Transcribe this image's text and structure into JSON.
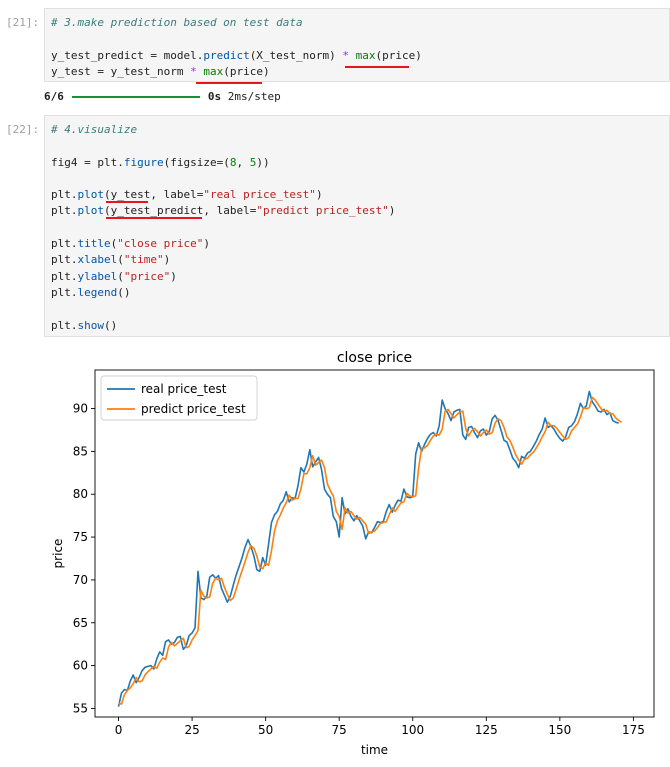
{
  "cells": [
    {
      "prompt": "[21]:",
      "code": {
        "comment": "# 3.make prediction based on test data",
        "line1": {
          "a": "y_test_predict = model.",
          "fn": "predict",
          "b": "(X_test_norm) ",
          "op": "*",
          "c": " ",
          "bi": "max",
          "d": "(price)"
        },
        "line2": {
          "a": "y_test = y_test_norm ",
          "op": "*",
          "b": " ",
          "bi": "max",
          "c": "(price)"
        }
      },
      "output": {
        "progress_label": "6/6",
        "time": "0s",
        "rate": "2ms/step",
        "progress": 1.0
      }
    },
    {
      "prompt": "[22]:",
      "code": {
        "comment": "# 4.visualize",
        "fig_line": {
          "a": "fig4 = plt.",
          "fn": "figure",
          "b": "(figsize=(",
          "n1": "8",
          "c": ", ",
          "n2": "5",
          "d": "))"
        },
        "plot1": {
          "a": "plt.",
          "fn": "plot",
          "b": "(y_test, label=",
          "s": "\"real price_test\"",
          "c": ")"
        },
        "plot2": {
          "a": "plt.",
          "fn": "plot",
          "b": "(y_test_predict, label=",
          "s": "\"predict price_test\"",
          "c": ")"
        },
        "title_line": {
          "a": "plt.",
          "fn": "title",
          "b": "(",
          "s": "\"close price\"",
          "c": ")"
        },
        "xlabel_line": {
          "a": "plt.",
          "fn": "xlabel",
          "b": "(",
          "s": "\"time\"",
          "c": ")"
        },
        "ylabel_line": {
          "a": "plt.",
          "fn": "ylabel",
          "b": "(",
          "s": "\"price\"",
          "c": ")"
        },
        "legend_line": {
          "a": "plt.",
          "fn": "legend",
          "b": "()"
        },
        "show_line": {
          "a": "plt.",
          "fn": "show",
          "b": "()"
        }
      }
    }
  ],
  "colors": {
    "real": "#1f77b4",
    "predict": "#ff7f0e",
    "underline": "#e8151b",
    "progress": "#1a8f3c"
  },
  "chart_data": {
    "type": "line",
    "title": "close price",
    "xlabel": "time",
    "ylabel": "price",
    "xlim": [
      -8,
      182
    ],
    "ylim": [
      54,
      94.5
    ],
    "xticks": [
      0,
      25,
      50,
      75,
      100,
      125,
      150,
      175
    ],
    "yticks": [
      55,
      60,
      65,
      70,
      75,
      80,
      85,
      90
    ],
    "legend": "upper-left",
    "series": [
      {
        "name": "real price_test",
        "x_step": 1,
        "values": [
          55.2,
          56.8,
          57.2,
          57.1,
          58.2,
          58.9,
          58.0,
          58.6,
          59.4,
          59.8,
          59.9,
          60.0,
          59.6,
          60.8,
          61.6,
          61.2,
          62.8,
          63.0,
          62.5,
          62.7,
          63.3,
          63.4,
          61.9,
          62.3,
          63.5,
          63.8,
          64.4,
          71.0,
          67.9,
          67.7,
          68.1,
          70.3,
          70.6,
          70.2,
          70.5,
          69.0,
          68.2,
          67.4,
          68.1,
          69.4,
          70.6,
          71.6,
          72.6,
          73.8,
          74.7,
          73.9,
          72.8,
          71.2,
          71.0,
          72.6,
          71.7,
          74.2,
          76.7,
          77.6,
          78.0,
          78.9,
          79.3,
          80.3,
          79.1,
          79.6,
          79.5,
          81.0,
          83.1,
          82.6,
          83.5,
          85.2,
          83.2,
          83.8,
          84.3,
          82.9,
          80.6,
          80.0,
          79.6,
          77.4,
          76.8,
          75.0,
          79.6,
          77.7,
          78.3,
          77.4,
          76.9,
          77.5,
          76.9,
          76.3,
          74.8,
          75.6,
          75.5,
          76.1,
          76.8,
          76.7,
          76.8,
          78.0,
          78.8,
          77.9,
          78.7,
          79.3,
          79.2,
          80.6,
          79.7,
          79.6,
          79.7,
          84.7,
          86.0,
          85.0,
          85.8,
          86.5,
          87.0,
          87.2,
          86.8,
          88.0,
          91.0,
          90.0,
          89.4,
          88.6,
          89.6,
          89.8,
          89.9,
          86.9,
          86.4,
          87.8,
          87.9,
          87.2,
          86.6,
          87.4,
          87.6,
          86.9,
          87.3,
          88.8,
          89.2,
          88.6,
          87.5,
          86.3,
          86.1,
          85.2,
          84.2,
          83.8,
          83.1,
          84.4,
          84.2,
          84.8,
          85.0,
          85.6,
          86.2,
          87.0,
          87.6,
          88.9,
          87.8,
          88.0,
          87.6,
          87.0,
          86.5,
          86.2,
          86.7,
          87.8,
          88.0,
          88.5,
          89.4,
          90.6,
          90.0,
          90.3,
          92.0,
          90.8,
          90.3,
          89.7,
          89.6,
          89.9,
          89.3,
          89.5,
          88.6,
          88.4,
          88.3
        ]
      },
      {
        "name": "predict price_test",
        "x_step": 1,
        "values": [
          55.6,
          55.5,
          56.6,
          57.1,
          57.4,
          57.9,
          58.6,
          58.1,
          58.2,
          58.9,
          59.3,
          59.6,
          59.9,
          59.7,
          60.4,
          60.9,
          60.7,
          62.2,
          62.7,
          62.3,
          62.6,
          62.9,
          63.2,
          62.1,
          62.2,
          63.0,
          63.5,
          64.1,
          68.8,
          68.1,
          67.9,
          68.0,
          69.6,
          70.2,
          70.0,
          70.2,
          69.1,
          68.3,
          67.6,
          67.9,
          68.9,
          70.1,
          71.1,
          72.1,
          73.2,
          74.0,
          73.7,
          72.8,
          71.5,
          71.3,
          72.0,
          71.7,
          73.4,
          75.7,
          76.9,
          77.6,
          78.4,
          79.0,
          79.9,
          79.3,
          79.5,
          79.5,
          80.6,
          82.4,
          82.4,
          83.1,
          84.5,
          83.4,
          83.7,
          84.0,
          83.1,
          81.2,
          80.4,
          79.8,
          78.0,
          77.4,
          75.9,
          78.4,
          77.8,
          78.0,
          77.5,
          77.1,
          77.3,
          76.9,
          76.5,
          75.4,
          75.6,
          75.7,
          76.1,
          76.6,
          76.7,
          76.8,
          77.6,
          78.4,
          78.0,
          78.5,
          79.0,
          79.1,
          80.1,
          79.8,
          79.7,
          79.8,
          83.0,
          85.4,
          85.4,
          85.7,
          86.3,
          86.8,
          87.0,
          86.9,
          87.6,
          89.7,
          89.9,
          89.4,
          88.9,
          89.3,
          89.6,
          89.7,
          87.7,
          86.8,
          87.4,
          87.7,
          87.3,
          86.8,
          87.2,
          87.5,
          87.0,
          87.2,
          88.3,
          88.8,
          88.6,
          87.8,
          86.7,
          86.3,
          85.5,
          84.6,
          84.0,
          83.5,
          84.1,
          84.2,
          84.6,
          84.9,
          85.4,
          86.0,
          86.7,
          87.3,
          88.4,
          88.0,
          88.0,
          87.7,
          87.2,
          86.8,
          86.4,
          86.6,
          87.4,
          87.8,
          88.2,
          89.0,
          90.1,
          90.0,
          90.1,
          91.3,
          91.0,
          90.5,
          90.0,
          89.7,
          89.8,
          89.4,
          89.4,
          88.9,
          88.6,
          88.4
        ]
      }
    ]
  }
}
